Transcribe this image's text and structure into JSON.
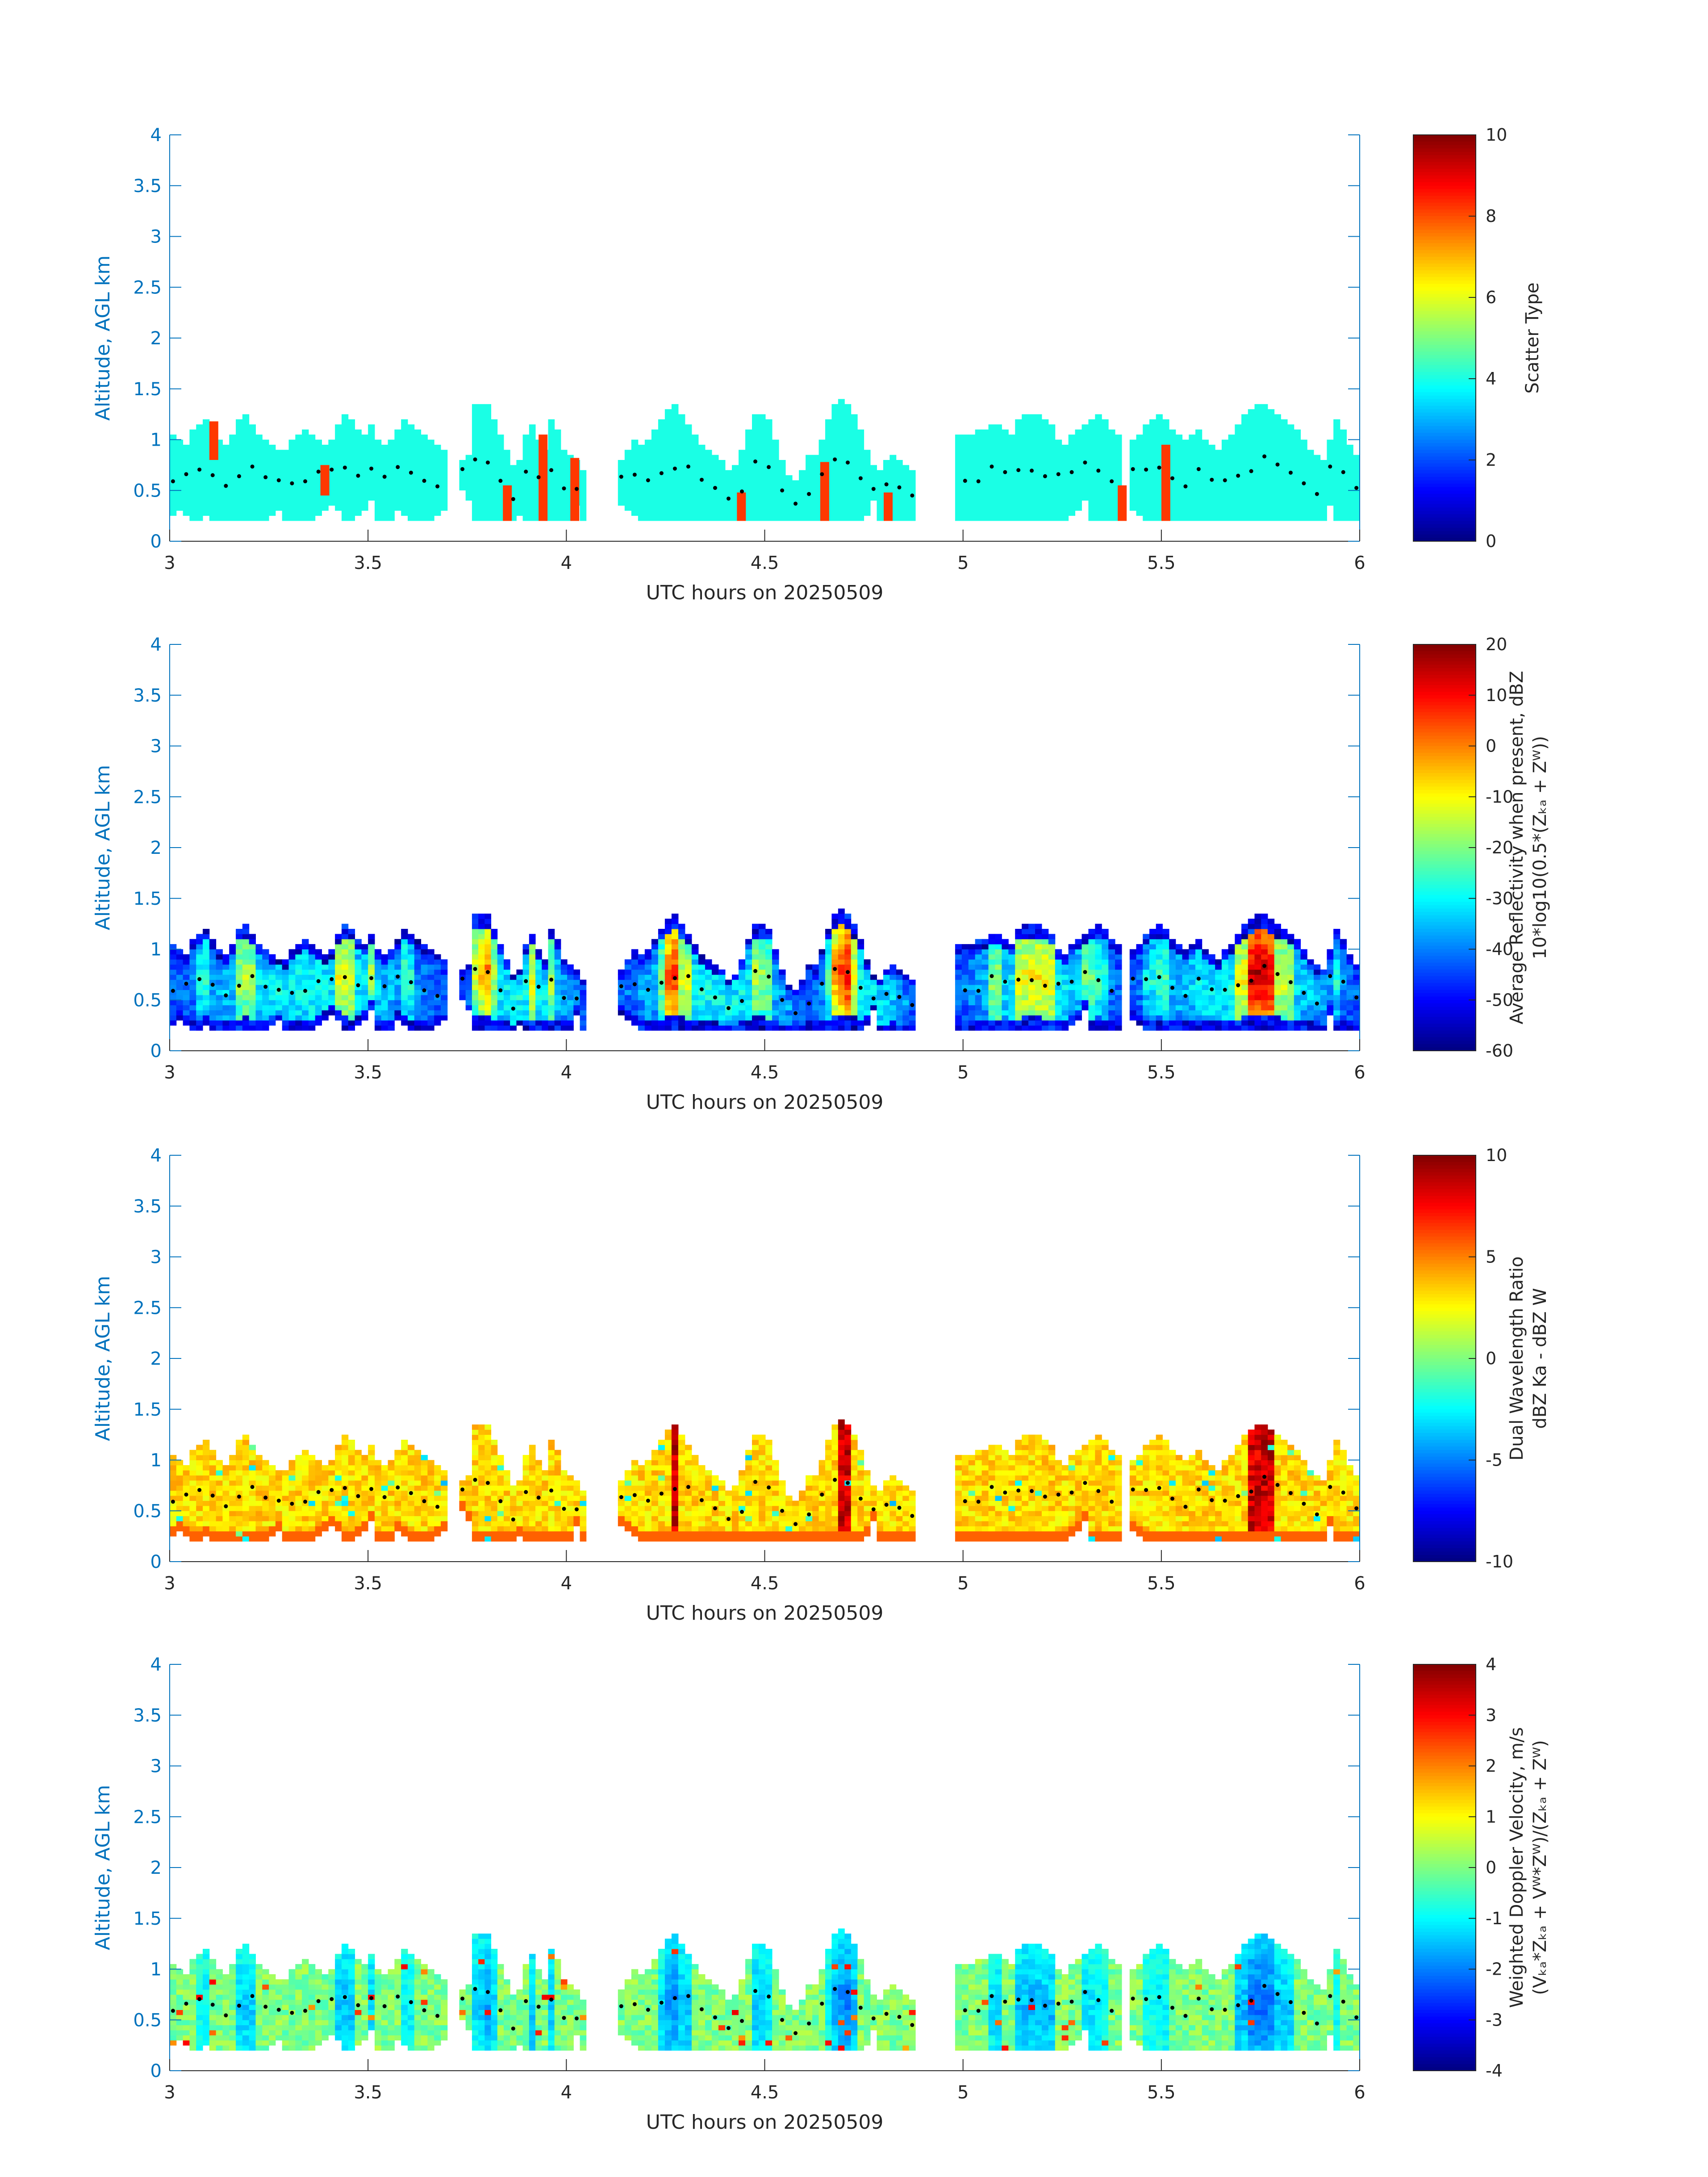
{
  "figure": {
    "background": "#ffffff",
    "axis_color": "#0072BD",
    "text_color": "#262626"
  },
  "chart_data": [
    {
      "type": "heatmap",
      "xlabel": "UTC hours on 20250509",
      "ylabel": "Altitude, AGL km",
      "xlim": [
        3,
        6
      ],
      "ylim": [
        0,
        4
      ],
      "xticks": [
        "3",
        "3.5",
        "4",
        "4.5",
        "5",
        "5.5",
        "6"
      ],
      "yticks": [
        "0",
        "0.5",
        "1",
        "1.5",
        "2",
        "2.5",
        "3",
        "3.5",
        "4"
      ],
      "colorbar": {
        "label_lines": [
          "Scatter Type"
        ],
        "min": 0,
        "max": 10,
        "ticks": [
          "0",
          "2",
          "4",
          "6",
          "8",
          "10"
        ],
        "colormap": "jet"
      },
      "field": "scatter",
      "dots": "cloud-midpoint markers (black)"
    },
    {
      "type": "heatmap",
      "xlabel": "UTC hours on 20250509",
      "ylabel": "Altitude, AGL km",
      "xlim": [
        3,
        6
      ],
      "ylim": [
        0,
        4
      ],
      "xticks": [
        "3",
        "3.5",
        "4",
        "4.5",
        "5",
        "5.5",
        "6"
      ],
      "yticks": [
        "0",
        "0.5",
        "1",
        "1.5",
        "2",
        "2.5",
        "3",
        "3.5",
        "4"
      ],
      "colorbar": {
        "label_lines": [
          "Average Reflectivity when present, dBZ",
          "10*log10(0.5*(Zₖₐ + Zᵂ))"
        ],
        "min": -60,
        "max": 20,
        "ticks": [
          "-60",
          "-50",
          "-40",
          "-30",
          "-20",
          "-10",
          "0",
          "10",
          "20"
        ],
        "colormap": "jet"
      },
      "field": "refl"
    },
    {
      "type": "heatmap",
      "xlabel": "UTC hours on 20250509",
      "ylabel": "Altitude, AGL km",
      "xlim": [
        3,
        6
      ],
      "ylim": [
        0,
        4
      ],
      "xticks": [
        "3",
        "3.5",
        "4",
        "4.5",
        "5",
        "5.5",
        "6"
      ],
      "yticks": [
        "0",
        "0.5",
        "1",
        "1.5",
        "2",
        "2.5",
        "3",
        "3.5",
        "4"
      ],
      "colorbar": {
        "label_lines": [
          "Dual Wavelength Ratio",
          "dBZ Ka - dBZ W"
        ],
        "min": -10,
        "max": 10,
        "ticks": [
          "-10",
          "-5",
          "0",
          "5",
          "10"
        ],
        "colormap": "jet"
      },
      "field": "dwr"
    },
    {
      "type": "heatmap",
      "xlabel": "UTC hours on 20250509",
      "ylabel": "Altitude, AGL km",
      "xlim": [
        3,
        6
      ],
      "ylim": [
        0,
        4
      ],
      "xticks": [
        "3",
        "3.5",
        "4",
        "4.5",
        "5",
        "5.5",
        "6"
      ],
      "yticks": [
        "0",
        "0.5",
        "1",
        "1.5",
        "2",
        "2.5",
        "3",
        "3.5",
        "4"
      ],
      "colorbar": {
        "label_lines": [
          "Weighted Doppler Velocity, m/s",
          "(Vₖₐ*Zₖₐ + Vᵂ*Zᵂ)/(Zₖₐ + Zᵂ)"
        ],
        "min": -4,
        "max": 4,
        "ticks": [
          "-4",
          "-3",
          "-2",
          "-1",
          "0",
          "1",
          "2",
          "3",
          "4"
        ],
        "colormap": "jet"
      },
      "field": "vel"
    }
  ],
  "cloud_columns": {
    "time_step_hours": 0.0167,
    "segments": [
      {
        "t_start": 3.0,
        "t_end": 3.7,
        "tops_km": [
          1.05,
          1.0,
          0.95,
          1.1,
          1.15,
          1.2,
          1.1,
          1.0,
          0.95,
          1.05,
          1.2,
          1.25,
          1.15,
          1.05,
          1.0,
          0.95,
          0.9,
          0.9,
          1.0,
          1.05,
          1.1,
          1.05,
          1.0,
          0.95,
          1.0,
          1.15,
          1.25,
          1.2,
          1.1,
          1.05,
          1.15,
          1.0,
          0.95,
          1.0,
          1.1,
          1.2,
          1.15,
          1.1,
          1.05,
          1.0,
          0.95,
          0.9
        ],
        "bases_km": [
          0.25,
          0.3,
          0.25,
          0.2,
          0.2,
          0.25,
          0.2,
          0.2,
          0.2,
          0.2,
          0.2,
          0.2,
          0.2,
          0.2,
          0.2,
          0.25,
          0.3,
          0.2,
          0.2,
          0.2,
          0.2,
          0.2,
          0.25,
          0.3,
          0.35,
          0.3,
          0.2,
          0.2,
          0.25,
          0.3,
          0.4,
          0.2,
          0.2,
          0.2,
          0.3,
          0.25,
          0.2,
          0.2,
          0.2,
          0.2,
          0.25,
          0.3
        ]
      },
      {
        "t_start": 3.73,
        "t_end": 4.05,
        "tops_km": [
          0.8,
          0.85,
          1.35,
          1.35,
          1.35,
          1.2,
          1.05,
          0.9,
          0.75,
          0.8,
          1.05,
          1.15,
          1.0,
          0.9,
          1.2,
          1.1,
          0.9,
          0.85,
          0.8,
          0.7
        ],
        "bases_km": [
          0.5,
          0.4,
          0.2,
          0.2,
          0.2,
          0.2,
          0.2,
          0.2,
          0.2,
          0.25,
          0.2,
          0.2,
          0.2,
          0.2,
          0.2,
          0.2,
          0.2,
          0.2,
          0.35,
          0.2
        ]
      },
      {
        "t_start": 4.13,
        "t_end": 4.62,
        "tops_km": [
          0.8,
          0.9,
          1.0,
          0.95,
          1.0,
          1.1,
          1.2,
          1.3,
          1.35,
          1.25,
          1.15,
          1.05,
          0.95,
          0.9,
          0.85,
          0.8,
          0.7,
          0.75,
          0.9,
          1.1,
          1.25,
          1.25,
          1.2,
          1.0,
          0.8,
          0.65,
          0.6,
          0.7,
          0.85
        ],
        "bases_km": [
          0.35,
          0.3,
          0.25,
          0.2,
          0.2,
          0.2,
          0.2,
          0.2,
          0.2,
          0.2,
          0.2,
          0.2,
          0.2,
          0.2,
          0.2,
          0.2,
          0.2,
          0.2,
          0.2,
          0.2,
          0.2,
          0.2,
          0.2,
          0.2,
          0.2,
          0.2,
          0.2,
          0.2,
          0.2
        ]
      },
      {
        "t_start": 4.62,
        "t_end": 4.88,
        "tops_km": [
          0.85,
          1.0,
          1.2,
          1.35,
          1.4,
          1.35,
          1.25,
          1.1,
          0.9,
          0.75,
          0.7,
          0.8,
          0.85,
          0.8,
          0.75,
          0.7
        ],
        "bases_km": [
          0.2,
          0.2,
          0.2,
          0.2,
          0.2,
          0.2,
          0.2,
          0.2,
          0.25,
          0.4,
          0.2,
          0.2,
          0.2,
          0.2,
          0.2,
          0.2
        ]
      },
      {
        "t_start": 4.98,
        "t_end": 5.4,
        "tops_km": [
          1.05,
          1.05,
          1.05,
          1.1,
          1.1,
          1.15,
          1.15,
          1.1,
          1.05,
          1.2,
          1.25,
          1.25,
          1.25,
          1.2,
          1.15,
          1.0,
          0.95,
          1.05,
          1.1,
          1.15,
          1.2,
          1.25,
          1.2,
          1.1,
          1.05
        ],
        "bases_km": [
          0.2,
          0.2,
          0.2,
          0.2,
          0.2,
          0.2,
          0.2,
          0.2,
          0.2,
          0.2,
          0.2,
          0.2,
          0.2,
          0.2,
          0.2,
          0.2,
          0.2,
          0.25,
          0.3,
          0.4,
          0.2,
          0.2,
          0.2,
          0.2,
          0.2
        ]
      },
      {
        "t_start": 5.42,
        "t_end": 6.0,
        "tops_km": [
          1.0,
          1.05,
          1.15,
          1.2,
          1.25,
          1.2,
          1.1,
          1.05,
          1.0,
          1.05,
          1.1,
          1.0,
          0.95,
          0.9,
          1.0,
          1.05,
          1.15,
          1.25,
          1.3,
          1.35,
          1.35,
          1.3,
          1.25,
          1.2,
          1.15,
          1.1,
          1.0,
          0.9,
          0.85,
          0.8,
          1.0,
          1.2,
          1.1,
          0.95,
          0.85
        ],
        "bases_km": [
          0.3,
          0.25,
          0.2,
          0.2,
          0.2,
          0.2,
          0.2,
          0.2,
          0.2,
          0.2,
          0.2,
          0.2,
          0.2,
          0.2,
          0.2,
          0.2,
          0.2,
          0.2,
          0.2,
          0.2,
          0.2,
          0.2,
          0.2,
          0.2,
          0.2,
          0.2,
          0.2,
          0.2,
          0.2,
          0.2,
          0.35,
          0.2,
          0.2,
          0.2,
          0.2
        ]
      }
    ],
    "scatter_spikes": [
      {
        "t": 3.1,
        "top": 1.18,
        "bottom": 0.8
      },
      {
        "t": 3.38,
        "top": 0.75,
        "bottom": 0.45
      },
      {
        "t": 3.84,
        "top": 0.55,
        "bottom": 0.2
      },
      {
        "t": 3.93,
        "top": 1.05,
        "bottom": 0.2
      },
      {
        "t": 4.01,
        "top": 0.82,
        "bottom": 0.2
      },
      {
        "t": 4.43,
        "top": 0.48,
        "bottom": 0.2
      },
      {
        "t": 4.64,
        "top": 0.78,
        "bottom": 0.2
      },
      {
        "t": 4.8,
        "top": 0.48,
        "bottom": 0.2
      },
      {
        "t": 5.39,
        "top": 0.55,
        "bottom": 0.2
      },
      {
        "t": 5.5,
        "top": 0.95,
        "bottom": 0.2
      }
    ],
    "midpoint_dots_km": [
      0.6,
      0.55,
      0.58,
      0.52,
      0.9,
      0.95,
      0.85,
      0.8,
      0.78,
      0.72,
      0.7,
      0.68,
      0.65,
      0.72,
      0.78,
      0.8,
      0.75,
      0.7,
      0.72,
      0.78,
      0.85,
      0.82,
      0.78,
      0.9
    ]
  }
}
